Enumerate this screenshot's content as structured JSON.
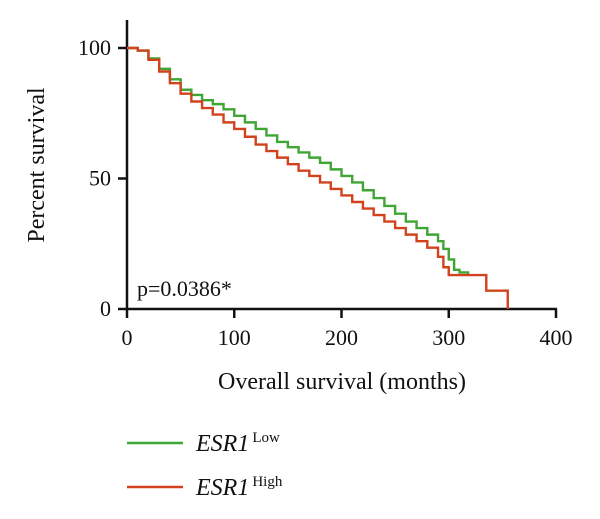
{
  "chart_data": {
    "type": "line",
    "title": "",
    "xlabel": "Overall survival (months)",
    "ylabel": "Percent survival",
    "xlim": [
      0,
      400
    ],
    "ylim": [
      0,
      100
    ],
    "x_ticks": [
      0,
      100,
      200,
      300,
      400
    ],
    "y_ticks": [
      0,
      50,
      100
    ],
    "grid": false,
    "legend_position": "bottom-left",
    "annotation": "p=0.0386*",
    "series": [
      {
        "name": "ESR1",
        "name_superscript": "Low",
        "color": "#3fa535",
        "step": true,
        "x": [
          0,
          10,
          20,
          30,
          40,
          50,
          60,
          70,
          80,
          90,
          100,
          110,
          120,
          130,
          140,
          150,
          160,
          170,
          180,
          190,
          200,
          210,
          220,
          230,
          240,
          250,
          260,
          270,
          280,
          290,
          295,
          300,
          305,
          310,
          318
        ],
        "y": [
          100,
          99,
          96,
          92,
          88,
          84,
          82,
          80,
          78.5,
          76.5,
          74,
          71.5,
          69,
          66.5,
          64,
          62,
          60,
          58,
          56,
          53.5,
          51,
          48.5,
          45.5,
          42.5,
          39.5,
          36.5,
          33.5,
          31,
          28.5,
          26,
          23,
          19,
          15,
          14,
          13
        ]
      },
      {
        "name": "ESR1",
        "name_superscript": "High",
        "color": "#d1421d",
        "step": true,
        "x": [
          0,
          10,
          20,
          30,
          40,
          50,
          60,
          70,
          80,
          90,
          100,
          110,
          120,
          130,
          140,
          150,
          160,
          170,
          180,
          190,
          200,
          210,
          220,
          230,
          240,
          250,
          260,
          270,
          280,
          290,
          295,
          300,
          310,
          320,
          335,
          345,
          355
        ],
        "y": [
          100,
          99,
          95.5,
          91,
          86.5,
          82.5,
          79.5,
          77,
          74.5,
          71.5,
          69,
          66,
          63,
          60.5,
          58,
          55.5,
          53,
          51,
          48.5,
          46,
          43.5,
          41,
          38.5,
          36,
          33.5,
          31,
          28.5,
          26,
          23.5,
          20,
          16,
          13,
          13,
          13,
          7,
          7,
          0
        ]
      }
    ]
  }
}
